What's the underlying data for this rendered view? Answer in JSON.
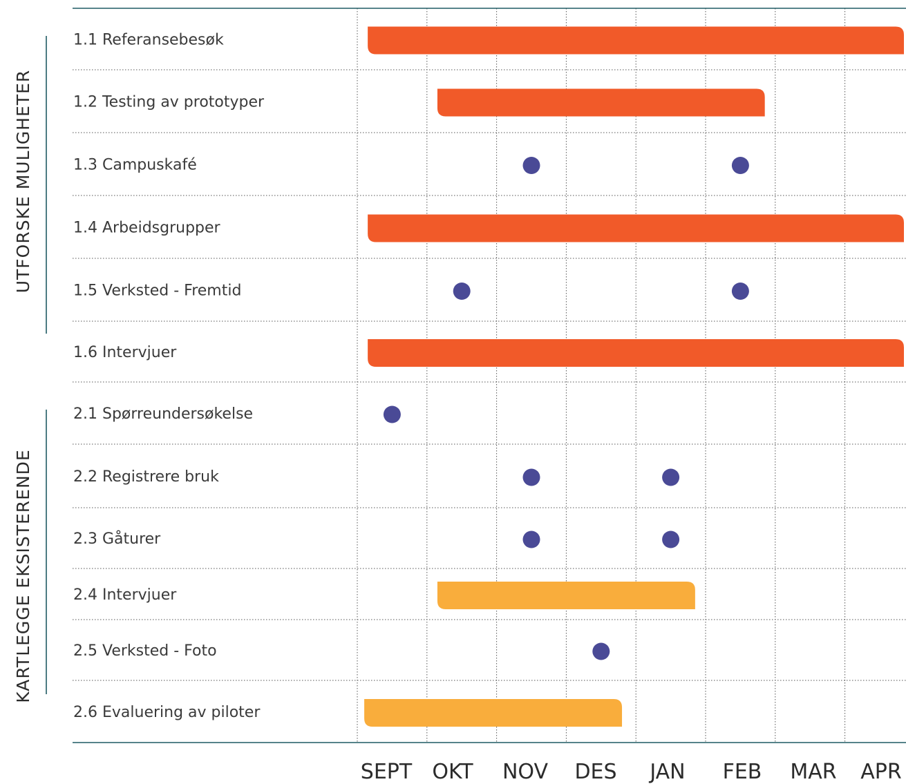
{
  "chart_data": {
    "type": "gantt",
    "months": [
      "SEPT",
      "OKT",
      "NOV",
      "DES",
      "JAN",
      "FEB",
      "MAR",
      "APR"
    ],
    "groups": [
      {
        "label": "UTFORSKE MULIGHETER",
        "task_indices": [
          0,
          1,
          2,
          3,
          4,
          5
        ]
      },
      {
        "label": "KARTLEGGE EKSISTERENDE",
        "task_indices": [
          6,
          7,
          8,
          9,
          10,
          11
        ]
      }
    ],
    "tasks": [
      {
        "label": "1.1 Referansebesøk",
        "kind": "bar",
        "start_month": 0.15,
        "end_month": 8.0,
        "color": "#f15a29"
      },
      {
        "label": "1.2 Testing av prototyper",
        "kind": "bar",
        "start_month": 1.15,
        "end_month": 5.85,
        "color": "#f15a29"
      },
      {
        "label": "1.3 Campuskafé",
        "kind": "points",
        "at_months": [
          2.5,
          5.5
        ],
        "color": "#4a4a96"
      },
      {
        "label": "1.4 Arbeidsgrupper",
        "kind": "bar",
        "start_month": 0.15,
        "end_month": 7.9,
        "color": "#f15a29"
      },
      {
        "label": "1.5 Verksted - Fremtid",
        "kind": "points",
        "at_months": [
          1.5,
          5.5
        ],
        "color": "#4a4a96"
      },
      {
        "label": "1.6 Intervjuer",
        "kind": "bar",
        "start_month": 0.15,
        "end_month": 7.9,
        "color": "#f15a29"
      },
      {
        "label": "2.1 Spørreundersøkelse",
        "kind": "points",
        "at_months": [
          0.5
        ],
        "color": "#4a4a96"
      },
      {
        "label": "2.2 Registrere bruk",
        "kind": "points",
        "at_months": [
          2.5,
          4.5
        ],
        "color": "#4a4a96"
      },
      {
        "label": "2.3 Gåturer",
        "kind": "points",
        "at_months": [
          2.5,
          4.5
        ],
        "color": "#4a4a96"
      },
      {
        "label": "2.4 Intervjuer",
        "kind": "bar",
        "start_month": 1.15,
        "end_month": 4.85,
        "color": "#f9ad3c"
      },
      {
        "label": "2.5 Verksted - Foto",
        "kind": "points",
        "at_months": [
          3.5
        ],
        "color": "#4a4a96"
      },
      {
        "label": "2.6 Evaluering av piloter",
        "kind": "bar",
        "start_month": 0.1,
        "end_month": 3.8,
        "color": "#f9ad3c"
      }
    ],
    "grid": true
  }
}
